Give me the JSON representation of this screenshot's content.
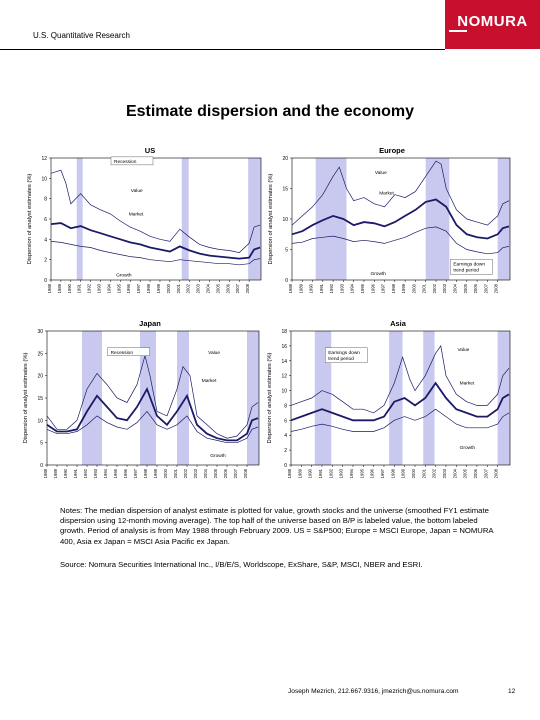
{
  "header": {
    "text": "U.S. Quantitative Research",
    "logo": "NOMURA",
    "brand_color": "#c8102e"
  },
  "title": "Estimate dispersion and the economy",
  "chart_data": [
    {
      "type": "line",
      "title": "US",
      "ylabel": "Dispersion of analyst estimates (%)",
      "ylim": [
        0,
        12
      ],
      "yticks": [
        0,
        2,
        4,
        6,
        8,
        10,
        12
      ],
      "x_labels": [
        "1988",
        "1989",
        "1990",
        "1991",
        "1992",
        "1993",
        "1994",
        "1995",
        "1996",
        "1997",
        "1998",
        "1999",
        "2000",
        "2001",
        "2002",
        "2003",
        "2004",
        "2005",
        "2006",
        "2007",
        "2008"
      ],
      "x_range": [
        1988,
        2009.2
      ],
      "shaded_periods": [
        [
          1990.6,
          1991.2
        ],
        [
          2001.2,
          2001.9
        ],
        [
          2007.9,
          2009.2
        ]
      ],
      "annotations": [
        "Recession",
        "Value",
        "Market",
        "Growth"
      ],
      "series": [
        {
          "name": "Value",
          "style": "thin",
          "x": [
            1988,
            1989,
            1989.5,
            1990,
            1991,
            1992,
            1993,
            1994,
            1995,
            1996,
            1997,
            1998,
            1999,
            2000,
            2001,
            2002,
            2003,
            2004,
            2005,
            2006,
            2007,
            2008,
            2008.5,
            2009.1
          ],
          "values": [
            10.5,
            10.8,
            9.5,
            7.5,
            8.5,
            7.4,
            6.9,
            6.5,
            5.8,
            5.2,
            4.8,
            4.3,
            4.0,
            3.8,
            5.0,
            4.2,
            3.5,
            3.2,
            3.0,
            2.9,
            2.7,
            3.6,
            5.2,
            5.4
          ]
        },
        {
          "name": "Market",
          "style": "bold",
          "x": [
            1988,
            1989,
            1990,
            1991,
            1992,
            1993,
            1994,
            1995,
            1996,
            1997,
            1998,
            1999,
            2000,
            2001,
            2002,
            2003,
            2004,
            2005,
            2006,
            2007,
            2008,
            2008.5,
            2009.1
          ],
          "values": [
            5.5,
            5.6,
            5.1,
            5.3,
            4.9,
            4.6,
            4.3,
            4.0,
            3.7,
            3.5,
            3.2,
            3.0,
            2.8,
            3.3,
            2.9,
            2.6,
            2.4,
            2.3,
            2.2,
            2.1,
            2.2,
            3.0,
            3.2
          ]
        },
        {
          "name": "Growth",
          "style": "thin",
          "x": [
            1988,
            1989,
            1990,
            1991,
            1992,
            1993,
            1994,
            1995,
            1996,
            1997,
            1998,
            1999,
            2000,
            2001,
            2002,
            2003,
            2004,
            2005,
            2006,
            2007,
            2008,
            2008.5,
            2009.1
          ],
          "values": [
            3.8,
            3.7,
            3.5,
            3.3,
            3.2,
            2.9,
            2.7,
            2.5,
            2.3,
            2.2,
            2.0,
            1.9,
            1.8,
            2.0,
            1.9,
            1.8,
            1.7,
            1.6,
            1.6,
            1.5,
            1.6,
            2.0,
            2.1
          ]
        }
      ]
    },
    {
      "type": "line",
      "title": "Europe",
      "ylabel": "Dispersion of analyst estimates (%)",
      "ylim": [
        0,
        20
      ],
      "yticks": [
        0,
        5,
        10,
        15,
        20
      ],
      "x_labels": [
        "1988",
        "1989",
        "1990",
        "1991",
        "1992",
        "1993",
        "1994",
        "1995",
        "1996",
        "1997",
        "1998",
        "1999",
        "2000",
        "2001",
        "2002",
        "2003",
        "2004",
        "2005",
        "2006",
        "2007",
        "2008"
      ],
      "x_range": [
        1988,
        2009.2
      ],
      "shaded_periods": [
        [
          1990.3,
          1993.3
        ],
        [
          2001.0,
          2003.3
        ],
        [
          2008.0,
          2009.2
        ]
      ],
      "annotations": [
        "Value",
        "Market",
        "Growth",
        "Earnings down trend period"
      ],
      "series": [
        {
          "name": "Value",
          "style": "thin",
          "x": [
            1988,
            1989,
            1990,
            1991,
            1992,
            1992.6,
            1993.3,
            1994,
            1995,
            1996,
            1997,
            1998,
            1999,
            2000,
            2001,
            2002,
            2002.5,
            2003,
            2004,
            2005,
            2006,
            2007,
            2008,
            2008.5,
            2009.1
          ],
          "values": [
            9.0,
            10.5,
            12.0,
            14.0,
            17.0,
            18.5,
            15.0,
            13.0,
            13.5,
            12.5,
            12.0,
            14.0,
            13.5,
            14.5,
            17.0,
            19.5,
            19.0,
            15.0,
            11.5,
            10.0,
            9.5,
            9.0,
            10.5,
            12.5,
            13.0
          ]
        },
        {
          "name": "Market",
          "style": "bold",
          "x": [
            1988,
            1989,
            1990,
            1991,
            1992,
            1993,
            1994,
            1995,
            1996,
            1997,
            1998,
            1999,
            2000,
            2001,
            2002,
            2003,
            2004,
            2005,
            2006,
            2007,
            2008,
            2008.5,
            2009.1
          ],
          "values": [
            7.5,
            8.0,
            9.0,
            9.8,
            10.5,
            10.0,
            9.0,
            9.5,
            9.3,
            8.8,
            9.5,
            10.5,
            11.5,
            12.8,
            13.2,
            12.0,
            9.0,
            7.5,
            7.0,
            6.8,
            7.5,
            8.5,
            8.8
          ]
        },
        {
          "name": "Growth",
          "style": "thin",
          "x": [
            1988,
            1989,
            1990,
            1991,
            1992,
            1993,
            1994,
            1995,
            1996,
            1997,
            1998,
            1999,
            2000,
            2001,
            2002,
            2003,
            2004,
            2005,
            2006,
            2007,
            2008,
            2008.5,
            2009.1
          ],
          "values": [
            6.0,
            6.2,
            6.8,
            7.0,
            7.2,
            6.8,
            6.3,
            6.5,
            6.3,
            6.0,
            6.5,
            7.0,
            7.8,
            8.5,
            8.7,
            8.0,
            6.0,
            5.0,
            4.6,
            4.3,
            4.5,
            5.3,
            5.5
          ]
        }
      ]
    },
    {
      "type": "line",
      "title": "Japan",
      "ylabel": "Dispersion of analyst estimates (%)",
      "ylim": [
        0,
        30
      ],
      "yticks": [
        0,
        5,
        10,
        15,
        20,
        25,
        30
      ],
      "x_labels": [
        "1988",
        "1989",
        "1990",
        "1991",
        "1992",
        "1993",
        "1994",
        "1995",
        "1996",
        "1997",
        "1998",
        "1999",
        "2000",
        "2001",
        "2002",
        "2003",
        "2004",
        "2005",
        "2006",
        "2007",
        "2008"
      ],
      "x_range": [
        1988,
        2009.2
      ],
      "shaded_periods": [
        [
          1991.5,
          1993.5
        ],
        [
          1997.3,
          1998.9
        ],
        [
          2001.0,
          2002.2
        ],
        [
          2008.0,
          2009.2
        ]
      ],
      "annotations": [
        "Recession",
        "Value",
        "Market",
        "Growth"
      ],
      "series": [
        {
          "name": "Value",
          "style": "thin",
          "x": [
            1988,
            1989,
            1990,
            1991,
            1992,
            1993,
            1994,
            1995,
            1996,
            1997,
            1997.8,
            1998.3,
            1999,
            2000,
            2001,
            2001.6,
            2002.3,
            2003,
            2004,
            2005,
            2006,
            2007,
            2008,
            2008.5,
            2009.1
          ],
          "values": [
            11.0,
            8.0,
            8.0,
            10.0,
            17.0,
            20.5,
            18.0,
            15.0,
            14.0,
            18.0,
            24.5,
            20.0,
            12.0,
            11.0,
            17.0,
            22.0,
            20.0,
            11.0,
            9.0,
            7.0,
            6.0,
            6.5,
            9.0,
            13.0,
            14.0
          ]
        },
        {
          "name": "Market",
          "style": "bold",
          "x": [
            1988,
            1989,
            1990,
            1991,
            1992,
            1993,
            1994,
            1995,
            1996,
            1997,
            1998,
            1999,
            2000,
            2001,
            2002,
            2003,
            2004,
            2005,
            2006,
            2007,
            2008,
            2008.5,
            2009.1
          ],
          "values": [
            9.0,
            7.5,
            7.5,
            8.0,
            12.0,
            15.5,
            13.0,
            10.5,
            10.0,
            13.0,
            17.0,
            11.0,
            9.0,
            12.0,
            15.5,
            9.0,
            7.0,
            6.0,
            5.5,
            5.5,
            7.0,
            10.0,
            10.5
          ]
        },
        {
          "name": "Growth",
          "style": "thin",
          "x": [
            1988,
            1989,
            1990,
            1991,
            1992,
            1993,
            1994,
            1995,
            1996,
            1997,
            1998,
            1999,
            2000,
            2001,
            2002,
            2003,
            2004,
            2005,
            2006,
            2007,
            2008,
            2008.5,
            2009.1
          ],
          "values": [
            8.0,
            7.0,
            7.0,
            7.5,
            9.0,
            11.0,
            9.5,
            8.5,
            8.0,
            9.5,
            12.0,
            9.0,
            8.0,
            9.0,
            11.0,
            7.5,
            6.0,
            5.5,
            5.0,
            5.0,
            6.0,
            8.0,
            8.5
          ]
        }
      ]
    },
    {
      "type": "line",
      "title": "Asia",
      "ylabel": "Dispersion of analyst estimates (%)",
      "ylim": [
        0,
        18
      ],
      "yticks": [
        0,
        2,
        4,
        6,
        8,
        10,
        12,
        14,
        16,
        18
      ],
      "x_labels": [
        "1988",
        "1989",
        "1990",
        "1991",
        "1992",
        "1993",
        "1994",
        "1995",
        "1996",
        "1997",
        "1998",
        "1999",
        "2000",
        "2001",
        "2002",
        "2003",
        "2004",
        "2005",
        "2006",
        "2007",
        "2008"
      ],
      "x_range": [
        1988,
        2009.2
      ],
      "shaded_periods": [
        [
          1990.3,
          1991.9
        ],
        [
          1997.5,
          1998.8
        ],
        [
          2000.8,
          2001.9
        ],
        [
          2008.0,
          2009.2
        ]
      ],
      "annotations": [
        "Earnings down trend period",
        "Value",
        "Market",
        "Growth"
      ],
      "series": [
        {
          "name": "Value",
          "style": "thin",
          "x": [
            1988,
            1989,
            1990,
            1991,
            1992,
            1993,
            1994,
            1995,
            1996,
            1997,
            1998,
            1998.8,
            1999.5,
            2000,
            2001,
            2002,
            2002.5,
            2003,
            2004,
            2005,
            2006,
            2007,
            2008,
            2008.5,
            2009.1
          ],
          "values": [
            8.0,
            8.5,
            9.0,
            10.0,
            9.5,
            8.5,
            7.5,
            7.5,
            7.0,
            8.0,
            11.0,
            14.5,
            11.5,
            10.0,
            12.0,
            15.0,
            16.0,
            12.0,
            9.5,
            8.5,
            8.0,
            8.0,
            9.5,
            12.0,
            13.0
          ]
        },
        {
          "name": "Market",
          "style": "bold",
          "x": [
            1988,
            1989,
            1990,
            1991,
            1992,
            1993,
            1994,
            1995,
            1996,
            1997,
            1998,
            1999,
            2000,
            2001,
            2002,
            2003,
            2004,
            2005,
            2006,
            2007,
            2008,
            2008.5,
            2009.1
          ],
          "values": [
            6.0,
            6.5,
            7.0,
            7.5,
            7.0,
            6.5,
            6.0,
            6.0,
            6.0,
            6.5,
            8.5,
            9.0,
            8.0,
            9.0,
            11.0,
            9.0,
            7.5,
            7.0,
            6.5,
            6.5,
            7.5,
            9.0,
            9.5
          ]
        },
        {
          "name": "Growth",
          "style": "thin",
          "x": [
            1988,
            1989,
            1990,
            1991,
            1992,
            1993,
            1994,
            1995,
            1996,
            1997,
            1998,
            1999,
            2000,
            2001,
            2002,
            2003,
            2004,
            2005,
            2006,
            2007,
            2008,
            2008.5,
            2009.1
          ],
          "values": [
            4.5,
            4.8,
            5.2,
            5.5,
            5.2,
            4.8,
            4.5,
            4.5,
            4.5,
            5.0,
            6.0,
            6.5,
            6.0,
            6.5,
            7.5,
            6.5,
            5.5,
            5.0,
            5.0,
            5.0,
            5.5,
            6.5,
            7.0
          ]
        }
      ]
    }
  ],
  "notes": "Notes: The median dispersion of analyst estimate is plotted for value, growth stocks and the universe (smoothed FY1 estimate dispersion using 12-month moving average). The top half of the universe based on B/P is labeled value, the bottom labeled growth. Period of analysis is from May 1988 through February 2009. US = S&P500; Europe = MSCI Europe, Japan = NOMURA 400, Asia ex Japan = MSCI Asia Pacific ex Japan.",
  "source": "Source: Nomura Securities International Inc., I/B/E/S, Worldscope, ExShare, S&P, MSCI, NBER and ESRI.",
  "footer": {
    "contact": "Joseph Mezrich, 212.667.9316, jmezrich@us.nomura.com",
    "page": "12"
  },
  "colors": {
    "shade": "#c9c9f0",
    "line": "#1a1a66",
    "axis": "#000000"
  }
}
